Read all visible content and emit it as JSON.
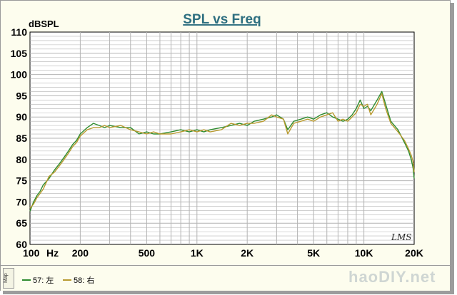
{
  "chart_data": {
    "type": "line",
    "title": "SPL vs Freq",
    "ylabel": "dBSPL",
    "xlabel": "",
    "x_scale": "log",
    "xlim": [
      100,
      20000
    ],
    "ylim": [
      60,
      110
    ],
    "x_ticks": [
      {
        "value": 100,
        "label": "100"
      },
      {
        "value": 200,
        "label": "200"
      },
      {
        "value": 500,
        "label": "500"
      },
      {
        "value": 1000,
        "label": "1K"
      },
      {
        "value": 2000,
        "label": "2K"
      },
      {
        "value": 5000,
        "label": "5K"
      },
      {
        "value": 10000,
        "label": "10K"
      },
      {
        "value": 20000,
        "label": "20K"
      }
    ],
    "x_unit": "Hz",
    "y_ticks": [
      110,
      105,
      100,
      95,
      90,
      85,
      80,
      75,
      70,
      65,
      60
    ],
    "grid": true,
    "legend_position": "bottom-left",
    "series": [
      {
        "name": "57: 左",
        "color": "#2e8b2e",
        "points": [
          [
            100,
            67.8
          ],
          [
            105,
            70
          ],
          [
            110,
            71.5
          ],
          [
            115,
            72.5
          ],
          [
            120,
            74
          ],
          [
            130,
            75.5
          ],
          [
            140,
            77.5
          ],
          [
            150,
            79
          ],
          [
            160,
            80.5
          ],
          [
            170,
            82
          ],
          [
            180,
            83.5
          ],
          [
            190,
            84.5
          ],
          [
            200,
            86
          ],
          [
            220,
            87.5
          ],
          [
            240,
            88.5
          ],
          [
            260,
            88
          ],
          [
            280,
            87.5
          ],
          [
            300,
            88
          ],
          [
            350,
            87.5
          ],
          [
            400,
            87.5
          ],
          [
            450,
            86
          ],
          [
            500,
            86.5
          ],
          [
            550,
            86
          ],
          [
            600,
            86
          ],
          [
            700,
            86.5
          ],
          [
            800,
            87
          ],
          [
            900,
            86.5
          ],
          [
            1000,
            87
          ],
          [
            1100,
            86.5
          ],
          [
            1200,
            87
          ],
          [
            1400,
            87.5
          ],
          [
            1600,
            88
          ],
          [
            1800,
            88.5
          ],
          [
            2000,
            88
          ],
          [
            2200,
            89
          ],
          [
            2500,
            89.5
          ],
          [
            2800,
            90
          ],
          [
            3000,
            90.5
          ],
          [
            3300,
            89.5
          ],
          [
            3500,
            87
          ],
          [
            3800,
            89
          ],
          [
            4200,
            89.5
          ],
          [
            4600,
            90
          ],
          [
            5000,
            89.5
          ],
          [
            5500,
            90.5
          ],
          [
            6000,
            91
          ],
          [
            6500,
            90
          ],
          [
            7000,
            89.5
          ],
          [
            7500,
            89
          ],
          [
            8000,
            89.5
          ],
          [
            8500,
            90.5
          ],
          [
            9000,
            92
          ],
          [
            9500,
            94
          ],
          [
            10000,
            92
          ],
          [
            10500,
            92.5
          ],
          [
            11000,
            91.5
          ],
          [
            12000,
            94
          ],
          [
            12800,
            96
          ],
          [
            13500,
            93
          ],
          [
            14500,
            89
          ],
          [
            16000,
            87
          ],
          [
            17500,
            84
          ],
          [
            18500,
            82
          ],
          [
            19200,
            80
          ],
          [
            19700,
            78
          ],
          [
            20000,
            75.5
          ]
        ]
      },
      {
        "name": "58: 右",
        "color": "#b89a30",
        "points": [
          [
            100,
            68.5
          ],
          [
            105,
            69.5
          ],
          [
            110,
            71
          ],
          [
            115,
            72
          ],
          [
            120,
            73
          ],
          [
            130,
            76
          ],
          [
            140,
            77
          ],
          [
            150,
            78.5
          ],
          [
            160,
            80
          ],
          [
            170,
            81.5
          ],
          [
            180,
            83
          ],
          [
            190,
            84
          ],
          [
            200,
            85.5
          ],
          [
            220,
            87
          ],
          [
            240,
            87.5
          ],
          [
            260,
            87.5
          ],
          [
            280,
            88
          ],
          [
            300,
            87.5
          ],
          [
            350,
            88
          ],
          [
            400,
            87
          ],
          [
            450,
            86.5
          ],
          [
            500,
            86
          ],
          [
            550,
            86.5
          ],
          [
            600,
            86
          ],
          [
            700,
            86
          ],
          [
            800,
            86.5
          ],
          [
            900,
            87
          ],
          [
            1000,
            86.5
          ],
          [
            1100,
            87
          ],
          [
            1200,
            86.5
          ],
          [
            1400,
            87
          ],
          [
            1600,
            88.5
          ],
          [
            1800,
            88
          ],
          [
            2000,
            88.5
          ],
          [
            2200,
            88.5
          ],
          [
            2500,
            89
          ],
          [
            2800,
            90.5
          ],
          [
            3000,
            90
          ],
          [
            3300,
            89.5
          ],
          [
            3500,
            86
          ],
          [
            3800,
            88.5
          ],
          [
            4200,
            89
          ],
          [
            4600,
            89.5
          ],
          [
            5000,
            89
          ],
          [
            5500,
            90
          ],
          [
            6000,
            90.5
          ],
          [
            6500,
            91
          ],
          [
            7000,
            89
          ],
          [
            7500,
            89.5
          ],
          [
            8000,
            89
          ],
          [
            8500,
            90
          ],
          [
            9000,
            91
          ],
          [
            9500,
            93
          ],
          [
            10000,
            92.5
          ],
          [
            10500,
            93
          ],
          [
            11000,
            90.5
          ],
          [
            12000,
            93
          ],
          [
            12800,
            95.5
          ],
          [
            13500,
            92
          ],
          [
            14500,
            88.5
          ],
          [
            16000,
            86.5
          ],
          [
            17500,
            84.5
          ],
          [
            18500,
            82.5
          ],
          [
            19200,
            81
          ],
          [
            19700,
            79.5
          ],
          [
            20000,
            77
          ]
        ]
      }
    ]
  },
  "legend": {
    "map_label": "Map",
    "items": [
      {
        "label": "57: 左",
        "color": "#2e8b2e"
      },
      {
        "label": "58: 右",
        "color": "#b89a30"
      }
    ]
  },
  "logo_text": "LMS",
  "watermark_text": "haoDIY.net",
  "colors": {
    "plot_background": "#ffffff",
    "grid": "#b4b4b4",
    "frame_background": "#fdfdee",
    "title": "#2e6f80"
  }
}
